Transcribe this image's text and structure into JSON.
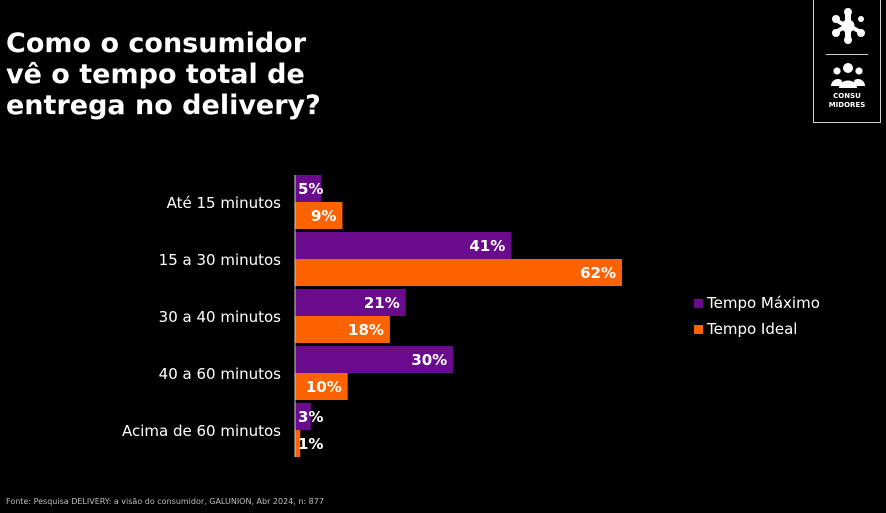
{
  "header": {
    "title_lines": [
      "Como o consumidor",
      "vê o tempo total de",
      "entrega no delivery?"
    ]
  },
  "logo": {
    "icon": "brand-mark-icon",
    "section_icon": "people-icon",
    "tag_lines": [
      "CONSU",
      "MIDORES"
    ]
  },
  "footer": {
    "source": "Fonte: Pesquisa DELIVERY: a visão do consumidor, GALUNION, Abr 2024, n: 877"
  },
  "colors": {
    "max": "#6a0a8c",
    "ideal": "#ff6200",
    "background": "#000000",
    "text": "#ffffff"
  },
  "chart_data": {
    "type": "bar",
    "orientation": "horizontal",
    "title": "Como o consumidor vê o tempo total de entrega no delivery?",
    "categories": [
      "Até 15 minutos",
      "15 a 30 minutos",
      "30 a 40 minutos",
      "40 a 60 minutos",
      "Acima de 60 minutos"
    ],
    "series": [
      {
        "name": "Tempo Máximo",
        "values": [
          5,
          41,
          21,
          30,
          3
        ],
        "color": "#6a0a8c"
      },
      {
        "name": "Tempo Ideal",
        "values": [
          9,
          62,
          18,
          10,
          1
        ],
        "color": "#ff6200"
      }
    ],
    "value_suffix": "%",
    "xlim": [
      0,
      62
    ],
    "grid": false,
    "legend_position": "right"
  }
}
